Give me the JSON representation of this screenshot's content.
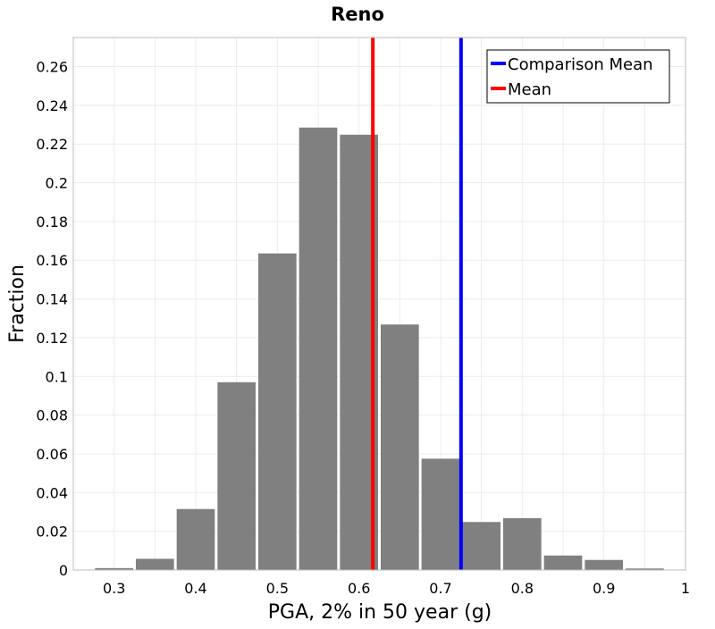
{
  "chart_data": {
    "type": "bar",
    "title": "Reno",
    "xlabel": "PGA, 2% in 50 year (g)",
    "ylabel": "Fraction",
    "xlim": [
      0.25,
      1.0
    ],
    "ylim": [
      0,
      0.275
    ],
    "grid": true,
    "legend_position": "top-right",
    "bin_width": 0.05,
    "bins": [
      {
        "x": 0.3,
        "value": 0.001
      },
      {
        "x": 0.35,
        "value": 0.0058
      },
      {
        "x": 0.4,
        "value": 0.0315
      },
      {
        "x": 0.45,
        "value": 0.097
      },
      {
        "x": 0.5,
        "value": 0.1635
      },
      {
        "x": 0.55,
        "value": 0.2285
      },
      {
        "x": 0.6,
        "value": 0.2248
      },
      {
        "x": 0.65,
        "value": 0.1268
      },
      {
        "x": 0.7,
        "value": 0.0575
      },
      {
        "x": 0.75,
        "value": 0.0248
      },
      {
        "x": 0.8,
        "value": 0.0268
      },
      {
        "x": 0.85,
        "value": 0.0075
      },
      {
        "x": 0.9,
        "value": 0.0052
      },
      {
        "x": 0.95,
        "value": 0.0008
      }
    ],
    "bar_color": "#808080",
    "xticks": [
      {
        "value": 0.3,
        "label": "0.3"
      },
      {
        "value": 0.4,
        "label": "0.4"
      },
      {
        "value": 0.5,
        "label": "0.5"
      },
      {
        "value": 0.6,
        "label": "0.6"
      },
      {
        "value": 0.7,
        "label": "0.7"
      },
      {
        "value": 0.8,
        "label": "0.8"
      },
      {
        "value": 0.9,
        "label": "0.9"
      },
      {
        "value": 1.0,
        "label": "1"
      }
    ],
    "yticks": [
      {
        "value": 0,
        "label": "0"
      },
      {
        "value": 0.02,
        "label": "0.02"
      },
      {
        "value": 0.04,
        "label": "0.04"
      },
      {
        "value": 0.06,
        "label": "0.06"
      },
      {
        "value": 0.08,
        "label": "0.08"
      },
      {
        "value": 0.1,
        "label": "0.1"
      },
      {
        "value": 0.12,
        "label": "0.12"
      },
      {
        "value": 0.14,
        "label": "0.14"
      },
      {
        "value": 0.16,
        "label": "0.16"
      },
      {
        "value": 0.18,
        "label": "0.18"
      },
      {
        "value": 0.2,
        "label": "0.2"
      },
      {
        "value": 0.22,
        "label": "0.22"
      },
      {
        "value": 0.24,
        "label": "0.24"
      },
      {
        "value": 0.26,
        "label": "0.26"
      }
    ],
    "vlines": [
      {
        "name": "Comparison Mean",
        "x": 0.725,
        "color": "#0000ff"
      },
      {
        "name": "Mean",
        "x": 0.617,
        "color": "#ff0000"
      }
    ]
  }
}
